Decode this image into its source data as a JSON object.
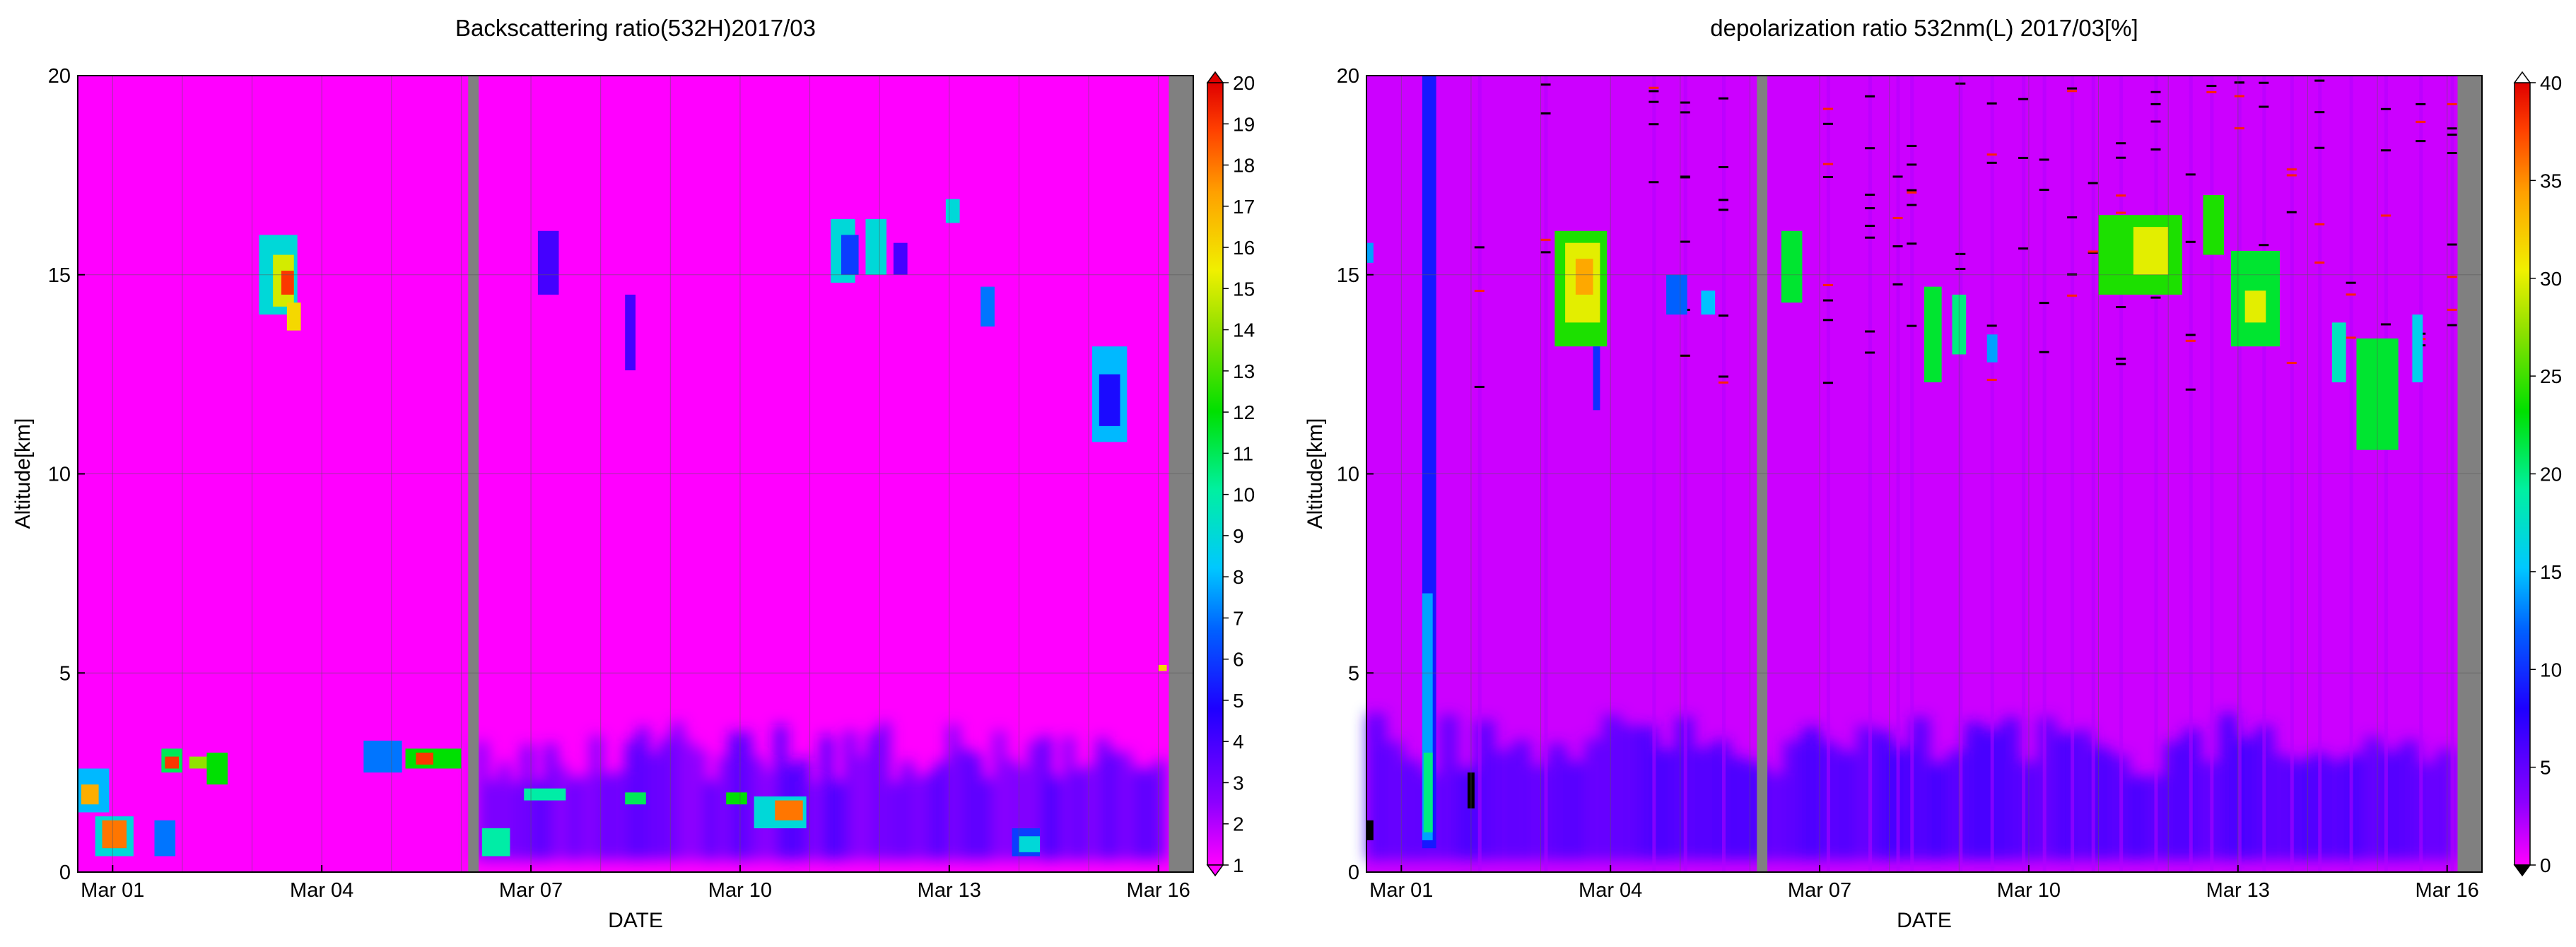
{
  "chart_data": [
    {
      "type": "heatmap",
      "title": "Backscattering ratio(532H)2017/03",
      "xlabel": "DATE",
      "ylabel": "Altitude[km]",
      "x_range_days": [
        0.5,
        16.5
      ],
      "x_ticks": [
        {
          "day": 1,
          "label": "Mar 01"
        },
        {
          "day": 4,
          "label": "Mar 04"
        },
        {
          "day": 7,
          "label": "Mar 07"
        },
        {
          "day": 10,
          "label": "Mar 10"
        },
        {
          "day": 13,
          "label": "Mar 13"
        },
        {
          "day": 16,
          "label": "Mar 16"
        }
      ],
      "ylim": [
        0,
        20
      ],
      "y_ticks": [
        0,
        5,
        10,
        15,
        20
      ],
      "grid": true,
      "background_value": 1,
      "colorbar": {
        "min": 1,
        "max": 20,
        "ticks": [
          1,
          2,
          3,
          4,
          5,
          6,
          7,
          8,
          9,
          10,
          11,
          12,
          13,
          14,
          15,
          16,
          17,
          18,
          19,
          20
        ],
        "extend": "both"
      },
      "missing_data_days": [
        [
          6.1,
          6.25
        ],
        [
          16.15,
          16.5
        ]
      ],
      "features": [
        {
          "d0": 0.5,
          "d1": 0.95,
          "z0": 1.5,
          "z1": 2.6,
          "value": 8
        },
        {
          "d0": 0.55,
          "d1": 0.8,
          "z0": 1.7,
          "z1": 2.2,
          "value": 17
        },
        {
          "d0": 0.75,
          "d1": 1.3,
          "z0": 0.4,
          "z1": 1.4,
          "value": 9
        },
        {
          "d0": 0.85,
          "d1": 1.2,
          "z0": 0.6,
          "z1": 1.3,
          "value": 18
        },
        {
          "d0": 1.6,
          "d1": 1.9,
          "z0": 0.4,
          "z1": 1.3,
          "value": 7
        },
        {
          "d0": 1.7,
          "d1": 2.0,
          "z0": 2.5,
          "z1": 3.1,
          "value": 11
        },
        {
          "d0": 1.75,
          "d1": 1.95,
          "z0": 2.6,
          "z1": 2.9,
          "value": 19
        },
        {
          "d0": 2.1,
          "d1": 2.5,
          "z0": 2.6,
          "z1": 2.9,
          "value": 14
        },
        {
          "d0": 2.35,
          "d1": 2.65,
          "z0": 2.2,
          "z1": 3.0,
          "value": 12
        },
        {
          "d0": 3.1,
          "d1": 3.65,
          "z0": 14.0,
          "z1": 16.0,
          "value": 9
        },
        {
          "d0": 3.3,
          "d1": 3.6,
          "z0": 14.2,
          "z1": 15.5,
          "value": 15
        },
        {
          "d0": 3.42,
          "d1": 3.6,
          "z0": 14.5,
          "z1": 15.1,
          "value": 19
        },
        {
          "d0": 3.5,
          "d1": 3.7,
          "z0": 13.6,
          "z1": 14.3,
          "value": 16
        },
        {
          "d0": 4.6,
          "d1": 5.15,
          "z0": 2.5,
          "z1": 3.3,
          "value": 7
        },
        {
          "d0": 5.2,
          "d1": 6.0,
          "z0": 2.6,
          "z1": 3.1,
          "value": 12
        },
        {
          "d0": 5.35,
          "d1": 5.6,
          "z0": 2.7,
          "z1": 3.0,
          "value": 19
        },
        {
          "d0": 6.3,
          "d1": 6.7,
          "z0": 0.4,
          "z1": 1.1,
          "value": 10
        },
        {
          "d0": 7.1,
          "d1": 7.4,
          "z0": 14.5,
          "z1": 16.1,
          "value": 4
        },
        {
          "d0": 8.35,
          "d1": 8.5,
          "z0": 12.6,
          "z1": 14.5,
          "value": 4
        },
        {
          "d0": 6.9,
          "d1": 7.5,
          "z0": 1.8,
          "z1": 2.1,
          "value": 10
        },
        {
          "d0": 8.35,
          "d1": 8.65,
          "z0": 1.7,
          "z1": 2.0,
          "value": 11
        },
        {
          "d0": 9.8,
          "d1": 10.1,
          "z0": 1.7,
          "z1": 2.0,
          "value": 12
        },
        {
          "d0": 10.2,
          "d1": 10.95,
          "z0": 1.1,
          "z1": 1.9,
          "value": 9
        },
        {
          "d0": 10.5,
          "d1": 10.9,
          "z0": 1.3,
          "z1": 1.8,
          "value": 18
        },
        {
          "d0": 11.3,
          "d1": 11.65,
          "z0": 14.8,
          "z1": 16.4,
          "value": 9
        },
        {
          "d0": 11.45,
          "d1": 11.7,
          "z0": 15.0,
          "z1": 16.0,
          "value": 6
        },
        {
          "d0": 11.8,
          "d1": 12.1,
          "z0": 15.0,
          "z1": 16.4,
          "value": 9
        },
        {
          "d0": 12.2,
          "d1": 12.4,
          "z0": 15.0,
          "z1": 15.8,
          "value": 4
        },
        {
          "d0": 12.95,
          "d1": 13.15,
          "z0": 16.3,
          "z1": 16.9,
          "value": 9
        },
        {
          "d0": 13.45,
          "d1": 13.65,
          "z0": 13.7,
          "z1": 14.7,
          "value": 7
        },
        {
          "d0": 13.9,
          "d1": 14.3,
          "z0": 0.4,
          "z1": 1.1,
          "value": 6
        },
        {
          "d0": 14.0,
          "d1": 14.3,
          "z0": 0.5,
          "z1": 0.9,
          "value": 9
        },
        {
          "d0": 15.05,
          "d1": 15.55,
          "z0": 10.8,
          "z1": 13.2,
          "value": 8
        },
        {
          "d0": 15.15,
          "d1": 15.45,
          "z0": 11.2,
          "z1": 12.5,
          "value": 5
        },
        {
          "d0": 16.0,
          "d1": 16.12,
          "z0": 5.05,
          "z1": 5.2,
          "value": 16
        }
      ],
      "boundary_layer": {
        "z0": 0.3,
        "z1": 3.8,
        "from_day": 6.2,
        "to_day": 16.1,
        "value": 3
      }
    },
    {
      "type": "heatmap",
      "title": "depolarization ratio 532nm(L) 2017/03[%]",
      "xlabel": "DATE",
      "ylabel": "Altitude[km]",
      "x_range_days": [
        0.5,
        16.5
      ],
      "x_ticks": [
        {
          "day": 1,
          "label": "Mar 01"
        },
        {
          "day": 4,
          "label": "Mar 04"
        },
        {
          "day": 7,
          "label": "Mar 07"
        },
        {
          "day": 10,
          "label": "Mar 10"
        },
        {
          "day": 13,
          "label": "Mar 13"
        },
        {
          "day": 16,
          "label": "Mar 16"
        }
      ],
      "ylim": [
        0,
        20
      ],
      "y_ticks": [
        0,
        5,
        10,
        15,
        20
      ],
      "grid": true,
      "background_value": 3,
      "colorbar": {
        "min": 0,
        "max": 40,
        "ticks": [
          0,
          5,
          10,
          15,
          20,
          25,
          30,
          35,
          40
        ],
        "extend": "both"
      },
      "missing_data_days": [
        [
          6.1,
          6.25
        ],
        [
          16.15,
          16.5
        ]
      ],
      "features": [
        {
          "d0": 1.3,
          "d1": 1.5,
          "z0": 0.6,
          "z1": 20.0,
          "value": 9
        },
        {
          "d0": 1.3,
          "d1": 1.45,
          "z0": 0.8,
          "z1": 7.0,
          "value": 14
        },
        {
          "d0": 1.32,
          "d1": 1.45,
          "z0": 1.0,
          "z1": 3.0,
          "value": 20
        },
        {
          "d0": 3.2,
          "d1": 3.95,
          "z0": 13.2,
          "z1": 16.1,
          "value": 24
        },
        {
          "d0": 3.35,
          "d1": 3.85,
          "z0": 13.8,
          "z1": 15.8,
          "value": 30
        },
        {
          "d0": 3.5,
          "d1": 3.75,
          "z0": 14.5,
          "z1": 15.4,
          "value": 34
        },
        {
          "d0": 3.75,
          "d1": 3.85,
          "z0": 11.6,
          "z1": 13.2,
          "value": 10
        },
        {
          "d0": 4.8,
          "d1": 5.1,
          "z0": 14.0,
          "z1": 15.0,
          "value": 12
        },
        {
          "d0": 5.3,
          "d1": 5.5,
          "z0": 14.0,
          "z1": 14.6,
          "value": 15
        },
        {
          "d0": 6.45,
          "d1": 6.75,
          "z0": 14.3,
          "z1": 16.1,
          "value": 22
        },
        {
          "d0": 8.5,
          "d1": 8.75,
          "z0": 12.3,
          "z1": 14.7,
          "value": 22
        },
        {
          "d0": 8.9,
          "d1": 9.1,
          "z0": 13.0,
          "z1": 14.5,
          "value": 20
        },
        {
          "d0": 9.4,
          "d1": 9.55,
          "z0": 12.8,
          "z1": 13.5,
          "value": 14
        },
        {
          "d0": 11.0,
          "d1": 12.2,
          "z0": 14.5,
          "z1": 16.5,
          "value": 24
        },
        {
          "d0": 11.5,
          "d1": 12.0,
          "z0": 15.0,
          "z1": 16.2,
          "value": 30
        },
        {
          "d0": 12.5,
          "d1": 12.8,
          "z0": 15.5,
          "z1": 17.0,
          "value": 24
        },
        {
          "d0": 12.9,
          "d1": 13.6,
          "z0": 13.2,
          "z1": 15.6,
          "value": 22
        },
        {
          "d0": 13.1,
          "d1": 13.4,
          "z0": 13.8,
          "z1": 14.6,
          "value": 30
        },
        {
          "d0": 14.35,
          "d1": 14.55,
          "z0": 12.3,
          "z1": 13.8,
          "value": 18
        },
        {
          "d0": 14.7,
          "d1": 15.3,
          "z0": 10.6,
          "z1": 13.4,
          "value": 22
        },
        {
          "d0": 15.5,
          "d1": 15.65,
          "z0": 12.3,
          "z1": 14.0,
          "value": 16
        },
        {
          "d0": 0.5,
          "d1": 0.6,
          "z0": 15.3,
          "z1": 15.8,
          "value": 14
        },
        {
          "d0": 0.5,
          "d1": 0.6,
          "z0": 0.8,
          "z1": 1.3,
          "value": -1
        },
        {
          "d0": 1.95,
          "d1": 2.05,
          "z0": 1.6,
          "z1": 2.5,
          "value": -1
        }
      ],
      "boundary_layer": {
        "z0": 0.3,
        "z1": 4.0,
        "from_day": 0.5,
        "to_day": 16.1,
        "value": 6
      },
      "noise_columns_days": [
        2.1,
        3.05,
        4.6,
        5.05,
        5.6,
        7.1,
        7.7,
        8.1,
        8.3,
        9.0,
        9.45,
        9.9,
        10.2,
        10.6,
        10.9,
        11.3,
        11.8,
        12.3,
        12.6,
        13.0,
        13.35,
        13.75,
        14.15,
        14.6,
        15.1,
        15.6,
        16.05
      ]
    }
  ]
}
